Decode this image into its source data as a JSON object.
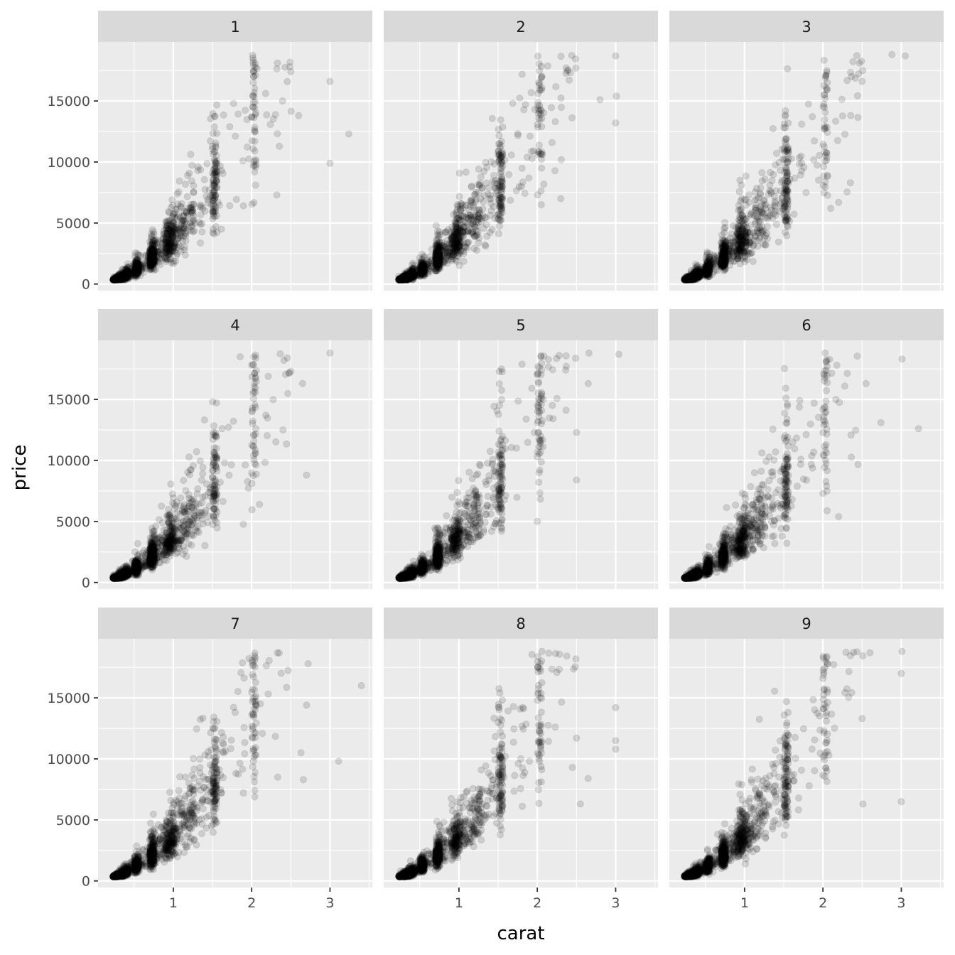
{
  "chart_data": {
    "type": "scatter",
    "layout": "facet_wrap",
    "xlabel": "carat",
    "ylabel": "price",
    "xlim": [
      0.04,
      3.54
    ],
    "ylim": [
      -540,
      19840
    ],
    "x_ticks": [
      1,
      2,
      3
    ],
    "x_tick_labels": [
      "1",
      "2",
      "3"
    ],
    "y_ticks": [
      0,
      5000,
      10000,
      15000
    ],
    "y_tick_labels": [
      "0",
      "5000",
      "10000",
      "15000"
    ],
    "grid": true,
    "point_color": "#000000",
    "point_opacity": 0.13,
    "panel_background": "#ebebeb",
    "strip_background": "#d9d9d9",
    "panels": [
      {
        "label": "1",
        "outliers": [
          [
            3.0,
            9900
          ],
          [
            3.24,
            12300
          ],
          [
            2.32,
            7300
          ],
          [
            3.0,
            16600
          ],
          [
            2.5,
            17400
          ],
          [
            2.6,
            13800
          ]
        ]
      },
      {
        "label": "2",
        "outliers": [
          [
            2.8,
            15100
          ],
          [
            3.01,
            15400
          ],
          [
            3.0,
            18700
          ],
          [
            3.0,
            13200
          ],
          [
            2.05,
            6500
          ],
          [
            2.3,
            7000
          ]
        ]
      },
      {
        "label": "3",
        "outliers": [
          [
            3.05,
            18700
          ],
          [
            2.88,
            18800
          ],
          [
            2.2,
            6700
          ],
          [
            2.5,
            16600
          ],
          [
            2.35,
            8300
          ],
          [
            2.1,
            6200
          ]
        ]
      },
      {
        "label": "4",
        "outliers": [
          [
            3.0,
            18800
          ],
          [
            2.7,
            8800
          ],
          [
            2.65,
            16300
          ],
          [
            2.1,
            6400
          ],
          [
            2.5,
            17300
          ],
          [
            2.4,
            12500
          ]
        ]
      },
      {
        "label": "5",
        "outliers": [
          [
            3.04,
            18700
          ],
          [
            2.5,
            8400
          ],
          [
            2.65,
            16300
          ],
          [
            2.66,
            18800
          ],
          [
            2.5,
            12300
          ],
          [
            2.0,
            5000
          ]
        ]
      },
      {
        "label": "6",
        "outliers": [
          [
            3.22,
            12600
          ],
          [
            3.01,
            18300
          ],
          [
            2.74,
            13100
          ],
          [
            2.55,
            16300
          ],
          [
            2.2,
            5400
          ],
          [
            2.0,
            7300
          ]
        ]
      },
      {
        "label": "7",
        "outliers": [
          [
            3.4,
            16000
          ],
          [
            3.11,
            9800
          ],
          [
            2.72,
            17800
          ],
          [
            2.66,
            8300
          ],
          [
            2.7,
            14400
          ],
          [
            2.63,
            10500
          ]
        ]
      },
      {
        "label": "8",
        "outliers": [
          [
            3.0,
            11500
          ],
          [
            3.0,
            10800
          ],
          [
            3.0,
            14200
          ],
          [
            2.65,
            8400
          ],
          [
            2.55,
            6300
          ],
          [
            2.5,
            11700
          ]
        ]
      },
      {
        "label": "9",
        "outliers": [
          [
            3.01,
            18800
          ],
          [
            3.0,
            17000
          ],
          [
            3.0,
            6500
          ],
          [
            2.51,
            6300
          ],
          [
            2.5,
            13300
          ],
          [
            2.6,
            18700
          ]
        ]
      }
    ]
  }
}
